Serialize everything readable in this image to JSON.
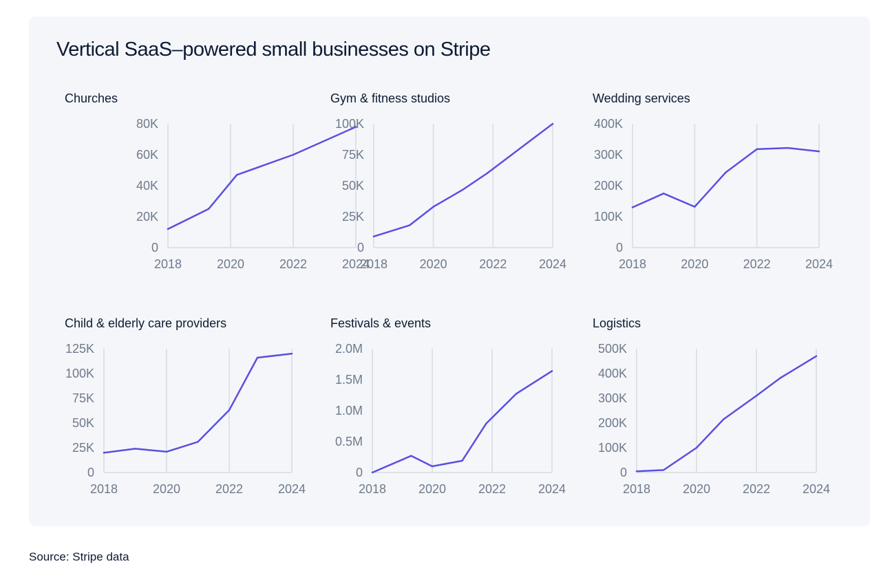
{
  "title": "Vertical SaaS–powered small businesses on Stripe",
  "source": "Source: Stripe data",
  "colors": {
    "line": "#5a4fe0",
    "grid": "#dde2e8",
    "tick_text": "#6e7a8c",
    "card_background": "#f5f6f9"
  },
  "chart_data": [
    {
      "type": "line",
      "title": "Churches",
      "x": [
        2018,
        2019.3,
        2020.2,
        2022,
        2024
      ],
      "y": [
        12000,
        25000,
        47000,
        60000,
        78000
      ],
      "ylim": [
        0,
        80000
      ],
      "xlim": [
        2018,
        2024
      ],
      "yticks": [
        0,
        20000,
        40000,
        60000,
        80000
      ],
      "ytick_labels": [
        "0",
        "20K",
        "40K",
        "60K",
        "80K"
      ],
      "xticks": [
        2018,
        2020,
        2022,
        2024
      ],
      "xtick_labels": [
        "2018",
        "2020",
        "2022",
        "2024"
      ],
      "grid": "vertical"
    },
    {
      "type": "line",
      "title": "Gym & fitness studios",
      "x": [
        2018,
        2019.2,
        2020,
        2021,
        2021.8,
        2024
      ],
      "y": [
        9000,
        18000,
        33000,
        47000,
        60000,
        100000
      ],
      "ylim": [
        0,
        100000
      ],
      "xlim": [
        2018,
        2024
      ],
      "yticks": [
        0,
        25000,
        50000,
        75000,
        100000
      ],
      "ytick_labels": [
        "0",
        "25K",
        "50K",
        "75K",
        "100K"
      ],
      "xticks": [
        2018,
        2020,
        2022,
        2024
      ],
      "xtick_labels": [
        "2018",
        "2020",
        "2022",
        "2024"
      ],
      "grid": "vertical"
    },
    {
      "type": "line",
      "title": "Wedding services",
      "x": [
        2018,
        2019,
        2020,
        2021,
        2022,
        2023,
        2024
      ],
      "y": [
        130000,
        175000,
        132000,
        243000,
        318000,
        322000,
        311000
      ],
      "ylim": [
        0,
        400000
      ],
      "xlim": [
        2018,
        2024
      ],
      "yticks": [
        0,
        100000,
        200000,
        300000,
        400000
      ],
      "ytick_labels": [
        "0",
        "100K",
        "200K",
        "300K",
        "400K"
      ],
      "xticks": [
        2018,
        2020,
        2022,
        2024
      ],
      "xtick_labels": [
        "2018",
        "2020",
        "2022",
        "2024"
      ],
      "grid": "vertical"
    },
    {
      "type": "line",
      "title": "Child & elderly care providers",
      "x": [
        2018,
        2019,
        2020,
        2021,
        2022,
        2022.9,
        2024
      ],
      "y": [
        20000,
        24000,
        21000,
        31000,
        63000,
        116000,
        120000
      ],
      "ylim": [
        0,
        125000
      ],
      "xlim": [
        2018,
        2024
      ],
      "yticks": [
        0,
        25000,
        50000,
        75000,
        100000,
        125000
      ],
      "ytick_labels": [
        "0",
        "25K",
        "50K",
        "75K",
        "100K",
        "125K"
      ],
      "xticks": [
        2018,
        2020,
        2022,
        2024
      ],
      "xtick_labels": [
        "2018",
        "2020",
        "2022",
        "2024"
      ],
      "grid": "vertical"
    },
    {
      "type": "line",
      "title": "Festivals & events",
      "x": [
        2018,
        2019.3,
        2020,
        2021,
        2021.8,
        2022.8,
        2024
      ],
      "y": [
        0,
        270000,
        100000,
        190000,
        790000,
        1270000,
        1640000
      ],
      "ylim": [
        0,
        2000000
      ],
      "xlim": [
        2018,
        2024
      ],
      "yticks": [
        0,
        500000,
        1000000,
        1500000,
        2000000
      ],
      "ytick_labels": [
        "0",
        "0.5M",
        "1.0M",
        "1.5M",
        "2.0M"
      ],
      "xticks": [
        2018,
        2020,
        2022,
        2024
      ],
      "xtick_labels": [
        "2018",
        "2020",
        "2022",
        "2024"
      ],
      "grid": "vertical"
    },
    {
      "type": "line",
      "title": "Logistics",
      "x": [
        2018,
        2018.9,
        2020,
        2020.9,
        2022,
        2022.8,
        2024
      ],
      "y": [
        5000,
        10000,
        100000,
        215000,
        310000,
        382000,
        470000
      ],
      "ylim": [
        0,
        500000
      ],
      "xlim": [
        2018,
        2024
      ],
      "yticks": [
        0,
        100000,
        200000,
        300000,
        400000,
        500000
      ],
      "ytick_labels": [
        "0",
        "100K",
        "200K",
        "300K",
        "400K",
        "500K"
      ],
      "xticks": [
        2018,
        2020,
        2022,
        2024
      ],
      "xtick_labels": [
        "2018",
        "2020",
        "2022",
        "2024"
      ],
      "grid": "vertical"
    }
  ]
}
